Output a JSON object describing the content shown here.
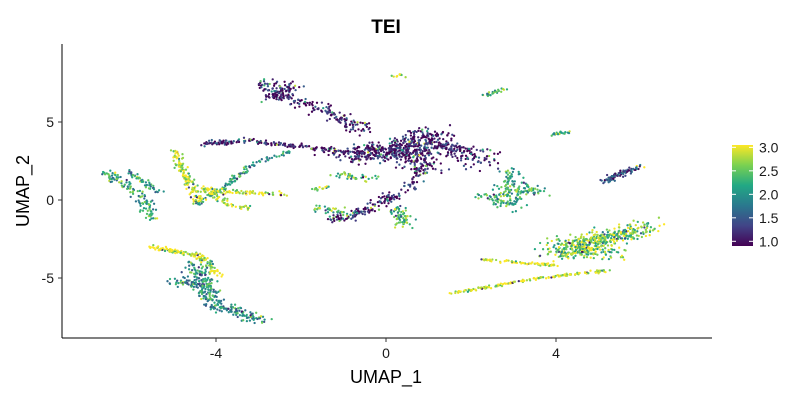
{
  "chart_data": {
    "type": "scatter",
    "title": "TEI",
    "xlabel": "UMAP_1",
    "ylabel": "UMAP_2",
    "xlim": [
      -7.8,
      7.9
    ],
    "ylim": [
      -8.8,
      9.8
    ],
    "x_ticks": [
      -4,
      0,
      4
    ],
    "x_tick_labels": [
      "-4",
      "0",
      "4"
    ],
    "y_ticks": [
      -5,
      0,
      5
    ],
    "y_tick_labels": [
      "-5",
      "0",
      "5"
    ],
    "grid": false,
    "legend_position": "right",
    "color_scale": {
      "palette": "viridis",
      "min": 0.9,
      "max": 3.05,
      "stops": [
        "#440154",
        "#414487",
        "#2a788e",
        "#22a884",
        "#7ad151",
        "#fde725"
      ],
      "ticks": [
        3.0,
        2.5,
        2.0,
        1.5,
        1.0
      ],
      "tick_labels": [
        "3.0",
        "2.5",
        "2.0",
        "1.5",
        "1.0"
      ]
    },
    "clusters": [
      {
        "segments": [
          [
            -0.7,
            2.8,
            0.5,
            3.5
          ],
          [
            0.5,
            3.5,
            1.2,
            4.3
          ],
          [
            -1.0,
            2.8,
            1.1,
            3.4
          ],
          [
            0.3,
            3.2,
            1.0,
            2.2
          ],
          [
            1.0,
            3.8,
            2.4,
            2.5
          ]
        ],
        "width": 0.55,
        "value": 1.0,
        "n": 700
      },
      {
        "segments": [
          [
            -2.9,
            7.6,
            -2.5,
            6.6
          ],
          [
            -2.5,
            6.6,
            -1.6,
            6.0
          ],
          [
            -1.6,
            6.0,
            -0.5,
            4.4
          ],
          [
            -2.7,
            6.4,
            -2.2,
            7.4
          ]
        ],
        "width": 0.3,
        "value": 1.0,
        "n": 260
      },
      {
        "segments": [
          [
            -4.3,
            3.6,
            -3.2,
            3.8
          ],
          [
            -3.2,
            3.8,
            -2.0,
            3.4
          ],
          [
            -2.0,
            3.4,
            -0.6,
            3.0
          ]
        ],
        "width": 0.15,
        "value": 1.0,
        "n": 180
      },
      {
        "segments": [
          [
            1.0,
            2.5,
            0.5,
            0.6
          ],
          [
            0.3,
            0.4,
            -0.6,
            -0.8
          ],
          [
            -0.6,
            -0.8,
            -1.4,
            -1.4
          ]
        ],
        "width": 0.25,
        "value": 1.0,
        "n": 200
      },
      {
        "segments": [
          [
            -4.5,
            -0.3,
            -3.8,
            0.8
          ],
          [
            -3.8,
            0.8,
            -3.1,
            2.4
          ],
          [
            -3.1,
            2.4,
            -2.2,
            3.1
          ],
          [
            -6.1,
            1.9,
            -5.3,
            0.4
          ]
        ],
        "width": 0.12,
        "value": 2.0,
        "n": 160
      },
      {
        "segments": [
          [
            -5.0,
            3.2,
            -4.4,
            -0.2
          ],
          [
            -4.4,
            0.6,
            -2.3,
            0.4
          ],
          [
            -4.2,
            0.8,
            -3.8,
            -0.2
          ],
          [
            -3.8,
            -0.2,
            -3.2,
            -0.5
          ]
        ],
        "width": 0.15,
        "value": 3.0,
        "n": 260
      },
      {
        "segments": [
          [
            -6.6,
            1.8,
            -5.7,
            0.1
          ],
          [
            -5.7,
            0.1,
            -5.5,
            -1.2
          ]
        ],
        "width": 0.2,
        "value": 2.2,
        "n": 120
      },
      {
        "segments": [
          [
            -1.2,
            1.6,
            -0.3,
            1.4
          ],
          [
            -1.6,
            -0.5,
            -0.8,
            -0.9
          ],
          [
            0.3,
            -0.4,
            0.4,
            -1.6
          ]
        ],
        "width": 0.25,
        "value": 2.4,
        "n": 150
      },
      {
        "segments": [
          [
            2.3,
            0.4,
            3.1,
            -0.4
          ],
          [
            2.9,
            1.8,
            3.1,
            0.0
          ],
          [
            3.0,
            0.8,
            3.5,
            0.6
          ]
        ],
        "width": 0.35,
        "value": 2.3,
        "n": 200
      },
      {
        "segments": [
          [
            4.0,
            -2.9,
            6.0,
            -1.9
          ],
          [
            4.0,
            -3.6,
            6.2,
            -1.6
          ],
          [
            3.8,
            -3.2,
            5.5,
            -3.4
          ]
        ],
        "width": 0.45,
        "value": 2.6,
        "n": 520
      },
      {
        "segments": [
          [
            1.5,
            -6.0,
            3.6,
            -5.0
          ],
          [
            3.6,
            -5.0,
            5.3,
            -4.5
          ],
          [
            2.2,
            -3.8,
            4.0,
            -4.2
          ]
        ],
        "width": 0.08,
        "value": 3.0,
        "n": 220
      },
      {
        "segments": [
          [
            -5.1,
            -5.2,
            -4.4,
            -5.4
          ],
          [
            -4.5,
            -4.1,
            -4.1,
            -6.6
          ],
          [
            -4.1,
            -6.6,
            -3.0,
            -7.7
          ]
        ],
        "width": 0.3,
        "value": 2.0,
        "n": 320
      },
      {
        "segments": [
          [
            -5.5,
            -3.0,
            -4.4,
            -3.6
          ],
          [
            -4.4,
            -3.6,
            -3.9,
            -4.8
          ]
        ],
        "width": 0.15,
        "value": 3.0,
        "n": 140
      },
      {
        "segments": [
          [
            5.1,
            1.2,
            5.9,
            2.1
          ]
        ],
        "width": 0.15,
        "value": 1.3,
        "n": 90
      },
      {
        "segments": [
          [
            3.9,
            4.2,
            4.3,
            4.3
          ],
          [
            2.3,
            6.7,
            2.8,
            7.1
          ]
        ],
        "width": 0.1,
        "value": 2.4,
        "n": 50
      },
      {
        "segments": [
          [
            0.2,
            8.0,
            0.4,
            8.0
          ],
          [
            -1.7,
            0.7,
            -1.4,
            0.8
          ]
        ],
        "width": 0.1,
        "value": 2.8,
        "n": 25
      }
    ]
  }
}
